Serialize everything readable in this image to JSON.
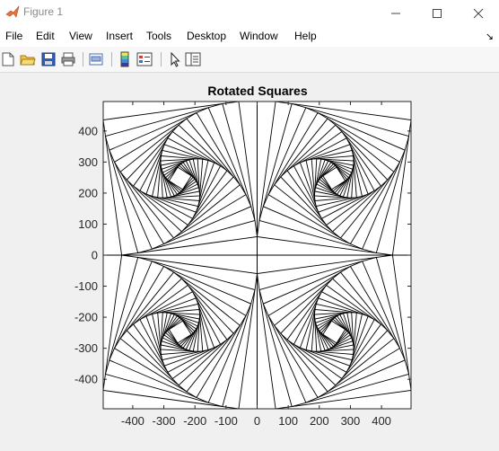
{
  "window": {
    "title": "Figure 1"
  },
  "menu": {
    "items": [
      "File",
      "Edit",
      "View",
      "Insert",
      "Tools",
      "Desktop",
      "Window",
      "Help"
    ]
  },
  "toolbar": {
    "icons": [
      "new-figure-icon",
      "open-file-icon",
      "save-icon",
      "print-icon",
      "print-preview-icon",
      "colorbar-icon",
      "legend-icon",
      "pointer-icon",
      "property-editor-icon"
    ]
  },
  "chart_data": {
    "type": "line",
    "title": "Rotated Squares",
    "xlabel": "",
    "ylabel": "",
    "xlim": [
      -495,
      495
    ],
    "ylim": [
      -495,
      495
    ],
    "xticks": [
      -400,
      -300,
      -200,
      -100,
      0,
      100,
      200,
      300,
      400
    ],
    "yticks": [
      -400,
      -300,
      -200,
      -100,
      0,
      100,
      200,
      300,
      400
    ],
    "xtick_labels": [
      "-400",
      "-300",
      "-200",
      "-100",
      "0",
      "100",
      "200",
      "300",
      "400"
    ],
    "ytick_labels": [
      "-400",
      "-300",
      "-200",
      "-100",
      "0",
      "100",
      "200",
      "300",
      "400"
    ],
    "grid": false,
    "axis_lines": [
      {
        "x": [
          0,
          0
        ],
        "y": [
          -495,
          495
        ]
      },
      {
        "x": [
          -495,
          495
        ],
        "y": [
          0,
          0
        ]
      }
    ],
    "quadrants": [
      {
        "center": [
          -247.5,
          247.5
        ],
        "half_side": 247.5,
        "direction": 1
      },
      {
        "center": [
          247.5,
          247.5
        ],
        "half_side": 247.5,
        "direction": -1
      },
      {
        "center": [
          -247.5,
          -247.5
        ],
        "half_side": 247.5,
        "direction": -1
      },
      {
        "center": [
          247.5,
          -247.5
        ],
        "half_side": 247.5,
        "direction": 1
      }
    ],
    "squares_per_quadrant": 20,
    "line_color": "#000000"
  }
}
